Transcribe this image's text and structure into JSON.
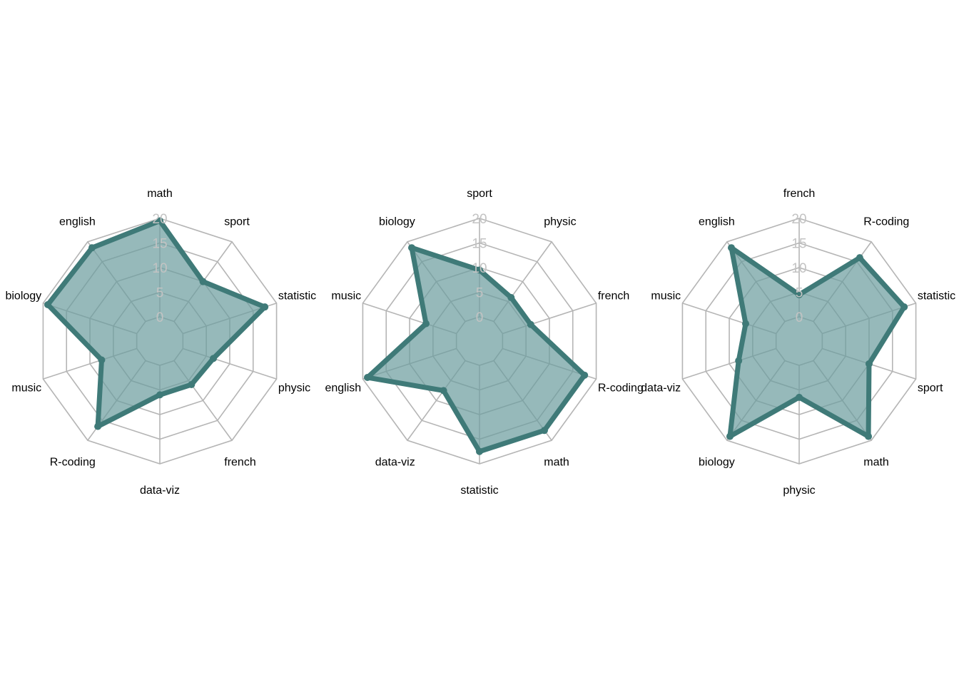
{
  "colors": {
    "series_line": "#3f7a78",
    "series_fill": "#6e9e9f",
    "grid": "#b5b5b5",
    "tick_text": "#c3c3c3"
  },
  "chart_data": [
    {
      "type": "radar",
      "rlim": [
        0,
        20
      ],
      "rticks": [
        "0",
        "5",
        "10",
        "15",
        "20"
      ],
      "axes": [
        "math",
        "sport",
        "statistic",
        "physic",
        "french",
        "data-viz",
        "R-coding",
        "music",
        "biology",
        "english"
      ],
      "values": [
        19.5,
        10,
        17.5,
        6.5,
        6,
        6,
        16.5,
        7.5,
        19,
        18.5
      ]
    },
    {
      "type": "radar",
      "rlim": [
        0,
        20
      ],
      "rticks": [
        "0",
        "5",
        "10",
        "15",
        "20"
      ],
      "axes": [
        "sport",
        "physic",
        "french",
        "R-coding",
        "math",
        "statistic",
        "data-viz",
        "english",
        "music",
        "biology"
      ],
      "values": [
        9.5,
        6,
        6,
        17.5,
        17.5,
        17.5,
        7.5,
        19,
        6.5,
        18.5
      ]
    },
    {
      "type": "radar",
      "rlim": [
        0,
        20
      ],
      "rticks": [
        "0",
        "5",
        "10",
        "15",
        "20"
      ],
      "axes": [
        "french",
        "R-coding",
        "statistic",
        "sport",
        "math",
        "physic",
        "biology",
        "data-viz",
        "music",
        "english"
      ],
      "values": [
        4.5,
        16,
        17.5,
        10,
        19,
        6.5,
        19,
        8,
        6.5,
        18.5
      ]
    }
  ]
}
